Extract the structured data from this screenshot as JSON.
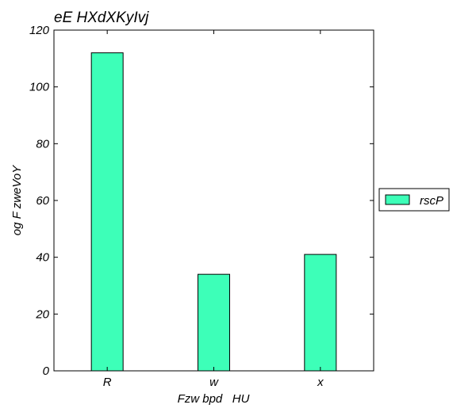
{
  "chart_data": {
    "type": "bar",
    "title": "eE HXdXKyIvj",
    "xlabel": "Fzw bpd   HU",
    "ylabel": "og F zweVoY",
    "categories": [
      "R",
      "w",
      "x"
    ],
    "series": [
      {
        "name": "rscP",
        "values": [
          112,
          34,
          41
        ],
        "color": "#3dffb8"
      }
    ],
    "ylim": [
      0,
      120
    ],
    "yticks": [
      0,
      20,
      40,
      60,
      80,
      100,
      120
    ],
    "grid": false,
    "legend": "right"
  }
}
